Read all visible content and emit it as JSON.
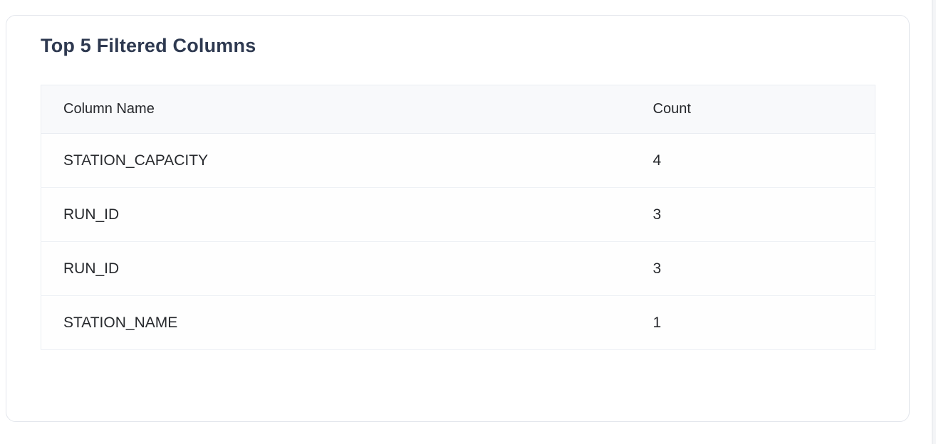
{
  "card": {
    "title": "Top 5 Filtered Columns"
  },
  "table": {
    "columns": [
      "Column Name",
      "Count"
    ],
    "rows": [
      {
        "column_name": "STATION_CAPACITY",
        "count": "4"
      },
      {
        "column_name": "RUN_ID",
        "count": "3"
      },
      {
        "column_name": "RUN_ID",
        "count": "3"
      },
      {
        "column_name": "STATION_NAME",
        "count": "1"
      }
    ]
  },
  "colors": {
    "title": "#2e3950",
    "body_text": "#27292d",
    "header_row_bg": "#f8f9fb",
    "card_border": "#e3e6ec",
    "row_divider": "#eef1f5"
  }
}
